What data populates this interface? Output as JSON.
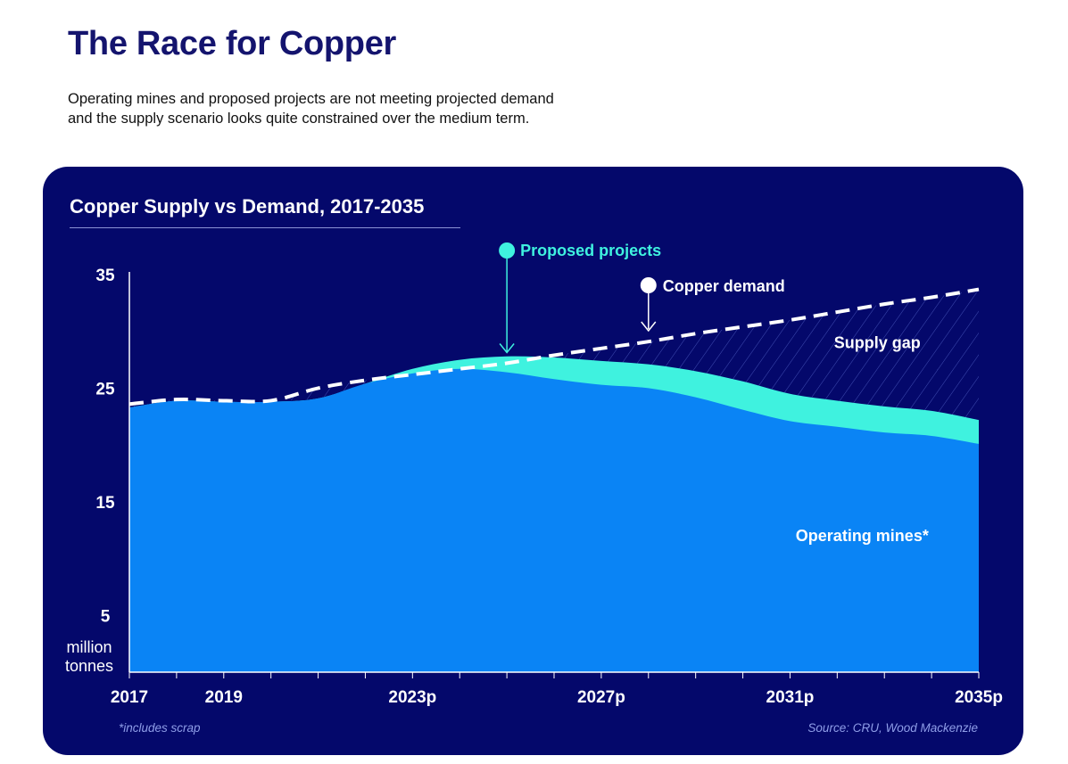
{
  "header": {
    "title": "The Race for Copper",
    "subtitle_lines": [
      "Operating mines and proposed projects are not meeting projected demand",
      "and the supply scenario looks quite constrained over the medium term."
    ]
  },
  "panel": {
    "footnote": "*includes scrap",
    "source": "Source: CRU, Wood Mackenzie"
  },
  "colors": {
    "panel_bg": "#04086b",
    "operating_mines": "#0a84f5",
    "proposed_projects": "#3ff2df",
    "demand_line": "#ffffff",
    "title": "#14146e"
  },
  "chart_data": {
    "type": "area",
    "title": "Copper Supply vs Demand, 2017-2035",
    "ylabel": "million tonnes",
    "ylim": [
      0,
      35
    ],
    "yticks": [
      5,
      15,
      25,
      35
    ],
    "x": [
      2017,
      2018,
      2019,
      2020,
      2021,
      2022,
      2023,
      2024,
      2025,
      2026,
      2027,
      2028,
      2029,
      2030,
      2031,
      2032,
      2033,
      2034,
      2035
    ],
    "x_tick_labels": [
      {
        "x": 2017,
        "label": "2017"
      },
      {
        "x": 2019,
        "label": "2019"
      },
      {
        "x": 2023,
        "label": "2023p"
      },
      {
        "x": 2027,
        "label": "2027p"
      },
      {
        "x": 2031,
        "label": "2031p"
      },
      {
        "x": 2035,
        "label": "2035p"
      }
    ],
    "series": [
      {
        "name": "Operating mines*",
        "kind": "area",
        "values": [
          23.3,
          23.9,
          23.8,
          23.8,
          24.1,
          25.4,
          26.3,
          26.7,
          26.4,
          25.8,
          25.3,
          25.0,
          24.2,
          23.1,
          22.1,
          21.6,
          21.1,
          20.8,
          20.1
        ]
      },
      {
        "name": "Proposed projects",
        "kind": "stacked_area",
        "totals": [
          23.3,
          23.9,
          23.8,
          23.8,
          24.1,
          25.4,
          26.7,
          27.5,
          27.8,
          27.7,
          27.4,
          27.1,
          26.5,
          25.6,
          24.5,
          23.9,
          23.4,
          23.0,
          22.2
        ]
      },
      {
        "name": "Copper demand",
        "kind": "dashed_line",
        "values": [
          23.6,
          24.0,
          23.9,
          23.9,
          25.0,
          25.7,
          26.2,
          26.7,
          27.2,
          27.9,
          28.5,
          29.1,
          29.8,
          30.4,
          31.0,
          31.7,
          32.4,
          33.0,
          33.7
        ]
      }
    ],
    "annotations": [
      {
        "label": "Proposed projects",
        "x": 2025,
        "color": "#3ff2df",
        "arrow_to": 27.9
      },
      {
        "label": "Copper demand",
        "x": 2028,
        "color": "#ffffff",
        "arrow_to": 29.2
      },
      {
        "label": "Supply gap",
        "x": 2033,
        "y": 29.0,
        "hatched_region": true
      },
      {
        "label": "Operating mines*",
        "x": 2032,
        "y": 12.0
      }
    ],
    "grid": false
  }
}
